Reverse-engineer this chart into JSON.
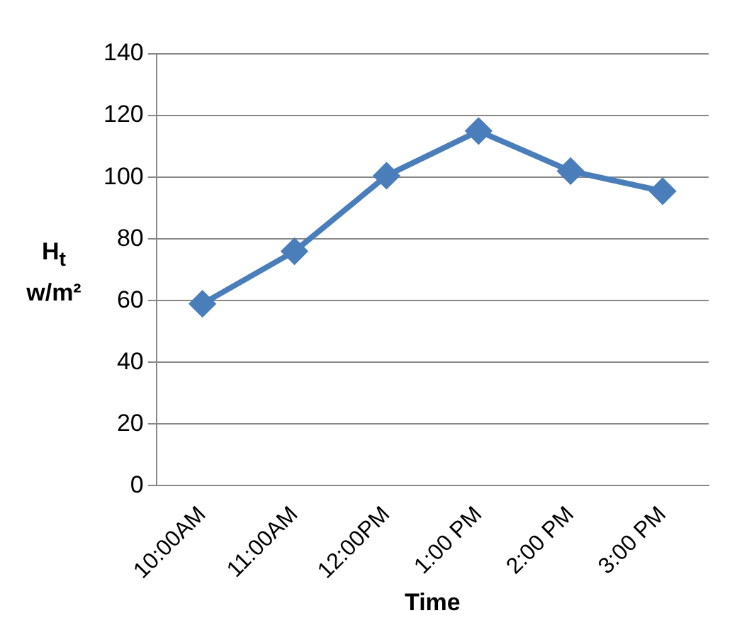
{
  "chart_data": {
    "type": "line",
    "xlabel": "Time",
    "ylabel": "H$_{t}$ w/m²",
    "categories": [
      "10:00AM",
      "11:00AM",
      "12:00PM",
      "1:00 PM",
      "2:00 PM",
      "3:00 PM"
    ],
    "series": [
      {
        "color": "#4a7ebb",
        "values": [
          59,
          76,
          100.5,
          115,
          102,
          95.5
        ]
      }
    ],
    "ylim": [
      0,
      140
    ],
    "yticks": [
      0,
      20,
      40,
      60,
      80,
      100,
      120,
      140
    ],
    "grid": "y",
    "legend": false,
    "marker": "diamond",
    "line_style": "solid"
  }
}
